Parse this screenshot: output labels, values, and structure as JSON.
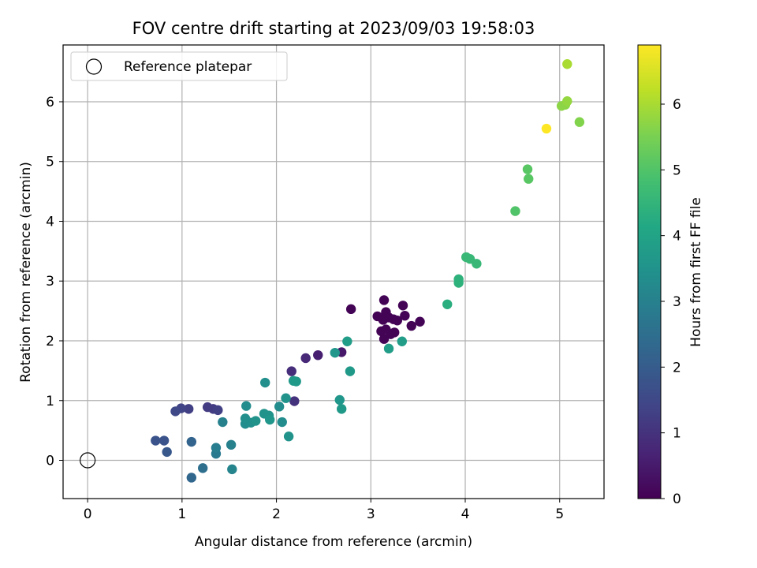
{
  "chart_data": {
    "type": "scatter",
    "title": "FOV centre drift starting at 2023/09/03 19:58:03",
    "xlabel": "Angular distance from reference (arcmin)",
    "ylabel": "Rotation from reference (arcmin)",
    "xlim": [
      -0.26,
      5.47
    ],
    "ylim": [
      -0.64,
      6.95
    ],
    "xticks": [
      0,
      1,
      2,
      3,
      4,
      5
    ],
    "yticks": [
      0,
      1,
      2,
      3,
      4,
      5,
      6
    ],
    "grid": true,
    "legend": {
      "position": "top-left",
      "entries": [
        {
          "label": "Reference platepar",
          "marker": "hollow-circle"
        }
      ]
    },
    "reference_point": {
      "x": 0,
      "y": 0
    },
    "colorbar": {
      "label": "Hours from first FF file",
      "colormap": "viridis",
      "range": [
        0,
        6.9
      ],
      "ticks": [
        0,
        1,
        2,
        3,
        4,
        5,
        6
      ]
    },
    "points": [
      {
        "x": 3.14,
        "y": 2.68,
        "c": 0.05
      },
      {
        "x": 3.34,
        "y": 2.59,
        "c": 0.05
      },
      {
        "x": 3.16,
        "y": 2.48,
        "c": 0.05
      },
      {
        "x": 3.07,
        "y": 2.41,
        "c": 0.05
      },
      {
        "x": 3.13,
        "y": 2.35,
        "c": 0.05
      },
      {
        "x": 3.19,
        "y": 2.39,
        "c": 0.05
      },
      {
        "x": 3.24,
        "y": 2.36,
        "c": 0.05
      },
      {
        "x": 3.28,
        "y": 2.34,
        "c": 0.05
      },
      {
        "x": 3.36,
        "y": 2.42,
        "c": 0.05
      },
      {
        "x": 3.43,
        "y": 2.25,
        "c": 0.05
      },
      {
        "x": 3.52,
        "y": 2.32,
        "c": 0.05
      },
      {
        "x": 3.11,
        "y": 2.16,
        "c": 0.05
      },
      {
        "x": 3.16,
        "y": 2.19,
        "c": 0.05
      },
      {
        "x": 3.21,
        "y": 2.11,
        "c": 0.05
      },
      {
        "x": 3.25,
        "y": 2.14,
        "c": 0.05
      },
      {
        "x": 3.14,
        "y": 2.03,
        "c": 0.05
      },
      {
        "x": 2.79,
        "y": 2.53,
        "c": 0.05
      },
      {
        "x": 2.69,
        "y": 1.81,
        "c": 0.45
      },
      {
        "x": 2.44,
        "y": 1.76,
        "c": 0.6
      },
      {
        "x": 2.31,
        "y": 1.71,
        "c": 0.8
      },
      {
        "x": 2.16,
        "y": 1.49,
        "c": 0.9
      },
      {
        "x": 2.19,
        "y": 0.99,
        "c": 1.0
      },
      {
        "x": 1.27,
        "y": 0.89,
        "c": 1.2
      },
      {
        "x": 1.33,
        "y": 0.86,
        "c": 1.2
      },
      {
        "x": 1.38,
        "y": 0.84,
        "c": 1.3
      },
      {
        "x": 1.07,
        "y": 0.86,
        "c": 1.3
      },
      {
        "x": 0.99,
        "y": 0.87,
        "c": 1.4
      },
      {
        "x": 0.93,
        "y": 0.82,
        "c": 1.5
      },
      {
        "x": 0.72,
        "y": 0.33,
        "c": 1.8
      },
      {
        "x": 0.81,
        "y": 0.33,
        "c": 1.8
      },
      {
        "x": 0.84,
        "y": 0.14,
        "c": 1.9
      },
      {
        "x": 1.1,
        "y": 0.31,
        "c": 2.2
      },
      {
        "x": 1.1,
        "y": -0.29,
        "c": 2.3
      },
      {
        "x": 1.22,
        "y": -0.13,
        "c": 2.5
      },
      {
        "x": 1.36,
        "y": 0.11,
        "c": 2.8
      },
      {
        "x": 1.36,
        "y": 0.21,
        "c": 2.9
      },
      {
        "x": 1.43,
        "y": 0.64,
        "c": 3.0
      },
      {
        "x": 1.52,
        "y": 0.26,
        "c": 3.0
      },
      {
        "x": 1.53,
        "y": -0.15,
        "c": 3.1
      },
      {
        "x": 1.67,
        "y": 0.61,
        "c": 3.3
      },
      {
        "x": 1.68,
        "y": 0.91,
        "c": 3.3
      },
      {
        "x": 1.67,
        "y": 0.7,
        "c": 3.4
      },
      {
        "x": 1.73,
        "y": 0.63,
        "c": 3.4
      },
      {
        "x": 1.78,
        "y": 0.66,
        "c": 3.5
      },
      {
        "x": 1.87,
        "y": 0.78,
        "c": 3.5
      },
      {
        "x": 1.92,
        "y": 0.75,
        "c": 3.5
      },
      {
        "x": 1.93,
        "y": 0.68,
        "c": 3.6
      },
      {
        "x": 1.88,
        "y": 1.3,
        "c": 3.4
      },
      {
        "x": 2.03,
        "y": 0.9,
        "c": 3.3
      },
      {
        "x": 2.06,
        "y": 0.64,
        "c": 3.3
      },
      {
        "x": 2.1,
        "y": 1.04,
        "c": 3.5
      },
      {
        "x": 2.13,
        "y": 0.4,
        "c": 3.5
      },
      {
        "x": 2.18,
        "y": 1.33,
        "c": 3.7
      },
      {
        "x": 2.21,
        "y": 1.32,
        "c": 3.7
      },
      {
        "x": 2.62,
        "y": 1.8,
        "c": 3.6
      },
      {
        "x": 2.75,
        "y": 1.99,
        "c": 3.8
      },
      {
        "x": 2.78,
        "y": 1.49,
        "c": 3.7
      },
      {
        "x": 2.67,
        "y": 1.01,
        "c": 3.6
      },
      {
        "x": 2.69,
        "y": 0.86,
        "c": 3.7
      },
      {
        "x": 3.19,
        "y": 1.87,
        "c": 3.8
      },
      {
        "x": 3.33,
        "y": 1.99,
        "c": 3.8
      },
      {
        "x": 3.81,
        "y": 2.61,
        "c": 4.3
      },
      {
        "x": 3.93,
        "y": 2.97,
        "c": 4.4
      },
      {
        "x": 3.93,
        "y": 3.03,
        "c": 4.4
      },
      {
        "x": 4.01,
        "y": 3.4,
        "c": 4.6
      },
      {
        "x": 4.05,
        "y": 3.37,
        "c": 4.6
      },
      {
        "x": 4.12,
        "y": 3.29,
        "c": 4.6
      },
      {
        "x": 4.53,
        "y": 4.17,
        "c": 5.0
      },
      {
        "x": 4.66,
        "y": 4.87,
        "c": 5.1
      },
      {
        "x": 4.67,
        "y": 4.71,
        "c": 5.1
      },
      {
        "x": 5.02,
        "y": 5.93,
        "c": 5.7
      },
      {
        "x": 5.06,
        "y": 5.95,
        "c": 5.7
      },
      {
        "x": 5.08,
        "y": 6.01,
        "c": 5.8
      },
      {
        "x": 5.21,
        "y": 5.66,
        "c": 5.6
      },
      {
        "x": 5.08,
        "y": 6.63,
        "c": 6.0
      },
      {
        "x": 4.86,
        "y": 5.55,
        "c": 6.9
      }
    ]
  }
}
